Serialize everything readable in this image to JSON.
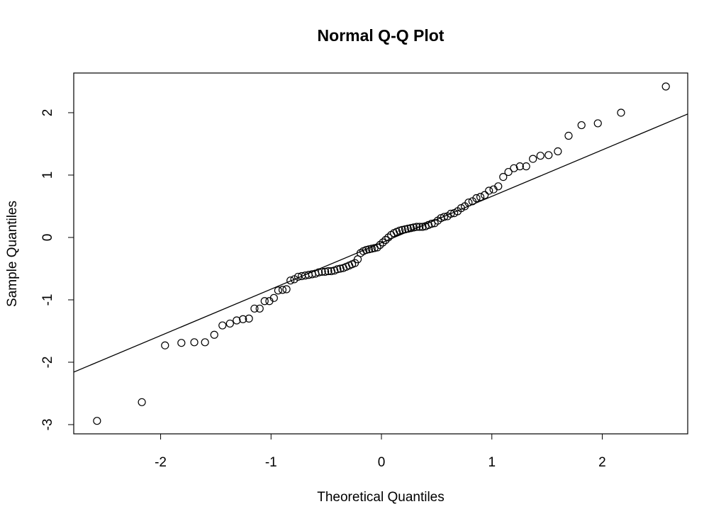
{
  "chart_data": {
    "type": "scatter",
    "title": "Normal Q-Q Plot",
    "x_label": "Theoretical Quantiles",
    "y_label": "Sample Quantiles",
    "x": [
      -2.576,
      -2.17,
      -1.96,
      -1.812,
      -1.695,
      -1.598,
      -1.514,
      -1.44,
      -1.372,
      -1.311,
      -1.254,
      -1.2,
      -1.15,
      -1.103,
      -1.058,
      -1.015,
      -0.974,
      -0.935,
      -0.896,
      -0.86,
      -0.824,
      -0.789,
      -0.755,
      -0.722,
      -0.69,
      -0.659,
      -0.628,
      -0.598,
      -0.568,
      -0.539,
      -0.51,
      -0.482,
      -0.454,
      -0.426,
      -0.399,
      -0.372,
      -0.345,
      -0.319,
      -0.292,
      -0.266,
      -0.24,
      -0.215,
      -0.189,
      -0.164,
      -0.138,
      -0.113,
      -0.088,
      -0.063,
      -0.038,
      -0.013,
      0.013,
      0.038,
      0.063,
      0.088,
      0.113,
      0.138,
      0.164,
      0.189,
      0.215,
      0.24,
      0.266,
      0.292,
      0.319,
      0.345,
      0.372,
      0.399,
      0.426,
      0.454,
      0.482,
      0.51,
      0.539,
      0.568,
      0.598,
      0.628,
      0.659,
      0.69,
      0.722,
      0.755,
      0.789,
      0.824,
      0.86,
      0.896,
      0.935,
      0.974,
      1.015,
      1.058,
      1.103,
      1.15,
      1.2,
      1.254,
      1.311,
      1.372,
      1.44,
      1.514,
      1.598,
      1.695,
      1.812,
      1.96,
      2.17,
      2.576
    ],
    "values": [
      -2.94,
      -2.64,
      -1.73,
      -1.69,
      -1.68,
      -1.68,
      -1.56,
      -1.41,
      -1.38,
      -1.33,
      -1.31,
      -1.3,
      -1.14,
      -1.14,
      -1.02,
      -1.02,
      -0.97,
      -0.85,
      -0.84,
      -0.83,
      -0.69,
      -0.67,
      -0.63,
      -0.62,
      -0.61,
      -0.6,
      -0.59,
      -0.58,
      -0.56,
      -0.55,
      -0.55,
      -0.54,
      -0.54,
      -0.53,
      -0.51,
      -0.5,
      -0.49,
      -0.47,
      -0.45,
      -0.43,
      -0.41,
      -0.35,
      -0.25,
      -0.22,
      -0.2,
      -0.19,
      -0.18,
      -0.17,
      -0.16,
      -0.12,
      -0.08,
      -0.04,
      0.0,
      0.04,
      0.07,
      0.09,
      0.11,
      0.12,
      0.13,
      0.14,
      0.15,
      0.16,
      0.17,
      0.17,
      0.17,
      0.18,
      0.2,
      0.22,
      0.23,
      0.27,
      0.31,
      0.33,
      0.34,
      0.38,
      0.39,
      0.42,
      0.47,
      0.5,
      0.56,
      0.58,
      0.63,
      0.65,
      0.68,
      0.75,
      0.77,
      0.82,
      0.97,
      1.05,
      1.11,
      1.14,
      1.14,
      1.26,
      1.31,
      1.32,
      1.38,
      1.63,
      1.8,
      1.83,
      2.0,
      2.42
    ],
    "qq_line": {
      "intercept": -0.085,
      "slope": 0.744
    },
    "color": "#000000",
    "xlim": [
      -2.787,
      2.774
    ],
    "ylim": [
      -3.148,
      2.636
    ],
    "xticks": [
      -2,
      -1,
      0,
      1,
      2
    ],
    "yticks": [
      -3,
      -2,
      -1,
      0,
      1,
      2
    ]
  }
}
